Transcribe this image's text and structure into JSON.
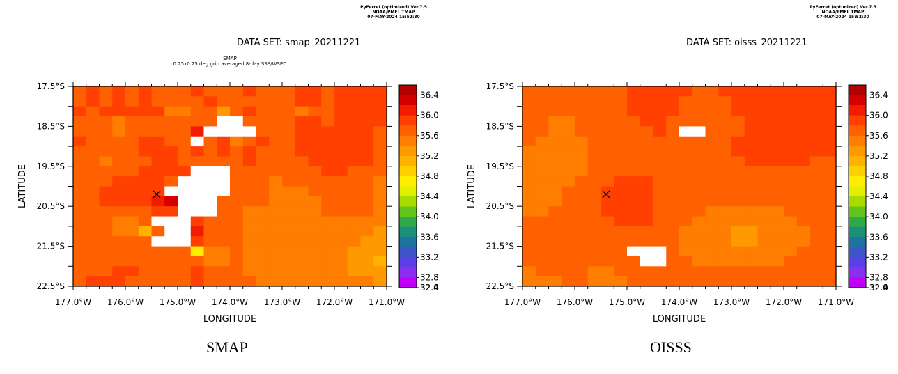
{
  "colors": {
    "palette": [
      "#b20000",
      "#d40000",
      "#f21d00",
      "#ff4000",
      "#ff6100",
      "#ff7d00",
      "#ff9900",
      "#ffb300",
      "#ffd000",
      "#ffee00",
      "#e1f000",
      "#a8dc00",
      "#63c31c",
      "#2fa84a",
      "#1a8f79",
      "#1e73a0",
      "#3c55c8",
      "#5a3fe6",
      "#8a2ff0",
      "#c000f5"
    ],
    "axis": "#000000",
    "missing": "#ffffff"
  },
  "panels": [
    {
      "credit_lines": [
        "PyFerret (optimized) Ver.7.5",
        "NOAA/PMEL TMAP",
        "07-MAY-2024 15:52:30"
      ],
      "dataset_title": "DATA SET: smap_20211221",
      "subtitle_lines": [
        "SMAP",
        "0.25x0.25 deg grid averaged 8-day SSS/WSPD"
      ],
      "caption": "SMAP"
    },
    {
      "credit_lines": [
        "PyFerret (optimized) Ver.7.5",
        "NOAA/PMEL TMAP",
        "07-MAY-2024 15:52:30"
      ],
      "dataset_title": "DATA SET: oisss_20211221",
      "subtitle_lines": [],
      "caption": "OISSS"
    }
  ],
  "chart_data": [
    {
      "type": "heatmap",
      "title": "DATA SET: smap_20211221",
      "xlabel": "LONGITUDE",
      "ylabel": "LATITUDE",
      "x_range": [
        -177.0,
        -171.0
      ],
      "y_range": [
        -22.5,
        -17.5
      ],
      "cell_size_deg": 0.25,
      "x_ticks": [
        "177.0°W",
        "176.0°W",
        "175.0°W",
        "174.0°W",
        "173.0°W",
        "172.0°W",
        "171.0°W"
      ],
      "y_ticks": [
        "17.5°S",
        "18.5°S",
        "19.5°S",
        "20.5°S",
        "21.5°S",
        "22.5°S"
      ],
      "colorbar_ticks": [
        "36.4",
        "36.0",
        "35.6",
        "35.2",
        "34.8",
        "34.4",
        "34.0",
        "33.6",
        "33.2",
        "32.8",
        "32.4",
        "32.0"
      ],
      "colorbar_range": [
        32.0,
        36.6
      ],
      "marker": {
        "symbol": "×",
        "lon": -175.4,
        "lat": -20.2
      },
      "grid_north_to_south": [
        [
          35.6,
          35.7,
          35.6,
          35.7,
          35.6,
          35.7,
          35.6,
          35.5,
          35.6,
          35.7,
          35.6,
          35.5,
          35.6,
          35.7,
          35.6,
          35.5,
          35.6,
          35.7,
          35.7,
          35.6,
          35.7,
          35.8,
          35.8,
          35.7
        ],
        [
          35.6,
          35.7,
          35.6,
          35.7,
          35.6,
          35.7,
          35.5,
          35.5,
          35.6,
          35.5,
          35.9,
          35.5,
          35.6,
          35.6,
          35.6,
          35.5,
          35.6,
          35.7,
          35.7,
          35.6,
          35.7,
          35.8,
          35.9,
          35.9
        ],
        [
          35.7,
          35.6,
          35.7,
          35.7,
          35.8,
          35.7,
          35.7,
          35.4,
          35.4,
          35.6,
          35.5,
          35.2,
          35.6,
          35.7,
          35.6,
          35.5,
          35.5,
          35.4,
          35.6,
          35.6,
          35.7,
          35.7,
          35.7,
          35.8
        ],
        [
          35.6,
          35.5,
          35.5,
          35.4,
          35.5,
          35.5,
          35.5,
          35.5,
          35.6,
          35.5,
          35.6,
          null,
          null,
          35.6,
          35.6,
          35.5,
          35.6,
          35.7,
          35.7,
          35.6,
          35.8,
          35.8,
          35.8,
          35.7
        ],
        [
          35.6,
          35.5,
          35.5,
          35.4,
          35.5,
          35.6,
          35.6,
          35.6,
          35.6,
          36.1,
          null,
          null,
          null,
          null,
          35.6,
          35.6,
          35.6,
          35.7,
          35.7,
          35.8,
          35.8,
          35.8,
          35.7,
          35.6
        ],
        [
          35.7,
          35.6,
          35.6,
          35.5,
          35.6,
          35.7,
          35.7,
          35.6,
          35.6,
          null,
          35.6,
          35.8,
          35.3,
          35.6,
          35.7,
          35.6,
          35.6,
          35.7,
          35.8,
          35.8,
          35.9,
          35.8,
          35.7,
          35.6
        ],
        [
          35.6,
          35.6,
          35.5,
          35.6,
          35.6,
          35.7,
          35.8,
          35.8,
          35.6,
          35.7,
          35.6,
          35.7,
          35.6,
          35.7,
          35.6,
          35.5,
          35.6,
          35.7,
          35.8,
          35.8,
          35.9,
          35.8,
          35.7,
          35.6
        ],
        [
          35.5,
          35.5,
          35.4,
          35.6,
          35.5,
          35.6,
          35.7,
          35.7,
          35.6,
          35.5,
          35.6,
          35.5,
          35.6,
          35.7,
          35.6,
          35.5,
          35.5,
          35.6,
          35.7,
          35.7,
          35.7,
          35.7,
          35.7,
          35.6
        ],
        [
          35.6,
          35.6,
          35.5,
          35.6,
          35.6,
          35.7,
          35.7,
          35.7,
          35.7,
          null,
          null,
          null,
          35.6,
          35.6,
          35.6,
          35.5,
          35.6,
          35.6,
          35.6,
          35.7,
          35.7,
          35.6,
          35.6,
          35.5
        ],
        [
          35.5,
          35.6,
          35.6,
          35.7,
          35.8,
          35.8,
          35.7,
          35.6,
          null,
          null,
          null,
          null,
          35.5,
          35.5,
          35.5,
          35.4,
          35.5,
          35.5,
          35.5,
          35.5,
          35.5,
          35.5,
          35.5,
          35.4
        ],
        [
          35.6,
          35.6,
          35.7,
          35.8,
          35.9,
          35.9,
          35.8,
          null,
          null,
          null,
          null,
          null,
          35.5,
          35.5,
          35.5,
          35.4,
          35.4,
          35.4,
          35.5,
          35.5,
          35.5,
          35.5,
          35.5,
          35.4
        ],
        [
          35.6,
          35.6,
          35.7,
          35.8,
          35.8,
          35.9,
          36.0,
          36.2,
          null,
          null,
          null,
          35.6,
          35.6,
          35.5,
          35.5,
          35.4,
          35.4,
          35.4,
          35.4,
          35.5,
          35.6,
          35.6,
          35.5,
          35.4
        ],
        [
          35.6,
          35.5,
          35.6,
          35.6,
          35.5,
          35.6,
          35.7,
          35.7,
          null,
          null,
          null,
          35.6,
          35.6,
          35.4,
          35.4,
          35.4,
          35.4,
          35.4,
          35.4,
          35.5,
          35.6,
          35.6,
          35.5,
          35.4
        ],
        [
          35.6,
          35.5,
          35.5,
          35.4,
          35.4,
          35.5,
          null,
          null,
          null,
          35.7,
          35.5,
          35.6,
          35.6,
          35.4,
          35.4,
          35.3,
          35.3,
          35.3,
          35.3,
          35.3,
          35.3,
          35.4,
          35.3,
          35.3
        ],
        [
          35.6,
          35.5,
          35.5,
          35.3,
          35.3,
          34.9,
          35.5,
          null,
          null,
          36.0,
          35.6,
          35.6,
          35.6,
          35.4,
          35.4,
          35.3,
          35.3,
          35.3,
          35.4,
          35.4,
          35.4,
          35.3,
          35.3,
          35.2
        ],
        [
          35.6,
          35.6,
          35.6,
          35.6,
          35.5,
          35.5,
          null,
          null,
          null,
          35.7,
          35.6,
          35.6,
          35.5,
          35.4,
          35.4,
          35.3,
          35.3,
          35.3,
          35.4,
          35.4,
          35.3,
          35.3,
          35.2,
          35.1
        ],
        [
          35.6,
          35.6,
          35.6,
          35.6,
          35.6,
          35.6,
          35.6,
          35.6,
          35.5,
          34.5,
          35.4,
          35.4,
          35.5,
          35.4,
          35.4,
          35.3,
          35.3,
          35.3,
          35.4,
          35.4,
          35.3,
          35.2,
          35.0,
          35.0
        ],
        [
          35.6,
          35.5,
          35.6,
          35.6,
          35.6,
          35.6,
          35.6,
          35.6,
          35.6,
          35.6,
          35.4,
          35.4,
          35.5,
          35.4,
          35.3,
          35.3,
          35.3,
          35.3,
          35.4,
          35.4,
          35.3,
          35.2,
          35.0,
          34.9
        ],
        [
          35.6,
          35.6,
          35.6,
          35.7,
          35.7,
          35.6,
          35.6,
          35.6,
          35.5,
          35.7,
          35.6,
          35.6,
          35.5,
          35.4,
          35.4,
          35.3,
          35.3,
          35.3,
          35.4,
          35.3,
          35.3,
          35.2,
          35.1,
          35.0
        ],
        [
          35.6,
          35.7,
          35.7,
          35.7,
          35.6,
          35.6,
          35.6,
          35.6,
          35.6,
          35.7,
          35.6,
          35.6,
          35.6,
          35.5,
          35.4,
          35.3,
          35.3,
          35.3,
          35.3,
          35.3,
          35.3,
          35.3,
          35.3,
          35.2
        ]
      ]
    },
    {
      "type": "heatmap",
      "title": "DATA SET: oisss_20211221",
      "xlabel": "LONGITUDE",
      "ylabel": "LATITUDE",
      "x_range": [
        -177.0,
        -171.0
      ],
      "y_range": [
        -22.5,
        -17.5
      ],
      "cell_size_deg": 0.25,
      "x_ticks": [
        "177.0°W",
        "176.0°W",
        "175.0°W",
        "174.0°W",
        "173.0°W",
        "172.0°W",
        "171.0°W"
      ],
      "y_ticks": [
        "17.5°S",
        "18.5°S",
        "19.5°S",
        "20.5°S",
        "21.5°S",
        "22.5°S"
      ],
      "colorbar_ticks": [
        "36.4",
        "36.0",
        "35.6",
        "35.2",
        "34.8",
        "34.4",
        "34.0",
        "33.6",
        "33.2",
        "32.8",
        "32.4",
        "32.0"
      ],
      "colorbar_range": [
        32.0,
        36.6
      ],
      "marker": {
        "symbol": "×",
        "lon": -175.4,
        "lat": -20.2
      },
      "grid_north_to_south": [
        [
          35.6,
          35.6,
          35.6,
          35.6,
          35.6,
          35.6,
          35.6,
          35.6,
          35.7,
          35.7,
          35.7,
          35.7,
          35.7,
          35.6,
          35.6,
          35.7,
          35.7,
          35.7,
          35.7,
          35.8,
          35.8,
          35.9,
          35.9,
          35.9
        ],
        [
          35.5,
          35.5,
          35.5,
          35.5,
          35.5,
          35.5,
          35.6,
          35.6,
          35.7,
          35.7,
          35.7,
          35.7,
          35.6,
          35.6,
          35.6,
          35.6,
          35.7,
          35.7,
          35.8,
          35.8,
          35.9,
          35.9,
          35.9,
          35.9
        ],
        [
          35.5,
          35.5,
          35.5,
          35.5,
          35.5,
          35.6,
          35.6,
          35.6,
          35.7,
          35.7,
          35.7,
          35.7,
          35.6,
          35.5,
          35.6,
          35.6,
          35.7,
          35.7,
          35.8,
          35.8,
          35.8,
          35.9,
          35.9,
          35.9
        ],
        [
          35.5,
          35.5,
          35.4,
          35.4,
          35.5,
          35.5,
          35.6,
          35.6,
          35.6,
          35.7,
          35.7,
          35.6,
          35.6,
          35.6,
          35.6,
          35.6,
          35.6,
          35.7,
          35.7,
          35.8,
          35.8,
          35.8,
          35.8,
          35.8
        ],
        [
          35.5,
          35.5,
          35.4,
          35.4,
          35.5,
          35.5,
          35.5,
          35.6,
          35.6,
          35.6,
          35.7,
          35.6,
          null,
          null,
          35.6,
          35.6,
          35.6,
          35.7,
          35.7,
          35.7,
          35.7,
          35.8,
          35.8,
          35.8
        ],
        [
          35.5,
          35.4,
          35.4,
          35.4,
          35.4,
          35.5,
          35.5,
          35.5,
          35.6,
          35.6,
          35.6,
          35.6,
          35.6,
          35.6,
          35.6,
          35.6,
          35.7,
          35.7,
          35.7,
          35.7,
          35.7,
          35.7,
          35.7,
          35.7
        ],
        [
          35.4,
          35.4,
          35.3,
          35.3,
          35.4,
          35.5,
          35.5,
          35.5,
          35.6,
          35.6,
          35.6,
          35.6,
          35.6,
          35.6,
          35.6,
          35.6,
          35.7,
          35.7,
          35.7,
          35.7,
          35.7,
          35.7,
          35.7,
          35.7
        ],
        [
          35.4,
          35.4,
          35.3,
          35.3,
          35.4,
          35.5,
          35.5,
          35.6,
          35.6,
          35.6,
          35.6,
          35.6,
          35.6,
          35.6,
          35.6,
          35.6,
          35.6,
          35.7,
          35.7,
          35.7,
          35.7,
          35.7,
          35.6,
          35.6
        ],
        [
          35.4,
          35.4,
          35.4,
          35.4,
          35.4,
          35.5,
          35.6,
          35.6,
          35.6,
          35.6,
          35.6,
          35.5,
          35.5,
          35.5,
          35.6,
          35.6,
          35.6,
          35.6,
          35.6,
          35.6,
          35.6,
          35.6,
          35.6,
          35.6
        ],
        [
          35.4,
          35.4,
          35.4,
          35.4,
          35.5,
          35.5,
          35.6,
          35.7,
          35.7,
          35.7,
          35.6,
          35.5,
          35.5,
          35.5,
          35.5,
          35.6,
          35.6,
          35.6,
          35.6,
          35.6,
          35.6,
          35.5,
          35.5,
          35.5
        ],
        [
          35.4,
          35.4,
          35.4,
          35.5,
          35.5,
          35.6,
          35.7,
          35.7,
          35.7,
          35.7,
          35.6,
          35.5,
          35.5,
          35.5,
          35.5,
          35.5,
          35.5,
          35.6,
          35.6,
          35.6,
          35.5,
          35.5,
          35.5,
          35.5
        ],
        [
          35.4,
          35.4,
          35.4,
          35.5,
          35.5,
          35.6,
          35.7,
          35.8,
          35.7,
          35.7,
          35.6,
          35.5,
          35.5,
          35.5,
          35.5,
          35.5,
          35.5,
          35.5,
          35.5,
          35.5,
          35.5,
          35.5,
          35.5,
          35.5
        ],
        [
          35.4,
          35.4,
          35.5,
          35.5,
          35.6,
          35.6,
          35.7,
          35.7,
          35.7,
          35.7,
          35.6,
          35.5,
          35.5,
          35.5,
          35.4,
          35.4,
          35.4,
          35.4,
          35.4,
          35.4,
          35.5,
          35.5,
          35.5,
          35.5
        ],
        [
          35.5,
          35.5,
          35.5,
          35.5,
          35.5,
          35.6,
          35.6,
          35.7,
          35.7,
          35.7,
          35.6,
          35.5,
          35.5,
          35.4,
          35.4,
          35.4,
          35.3,
          35.3,
          35.3,
          35.4,
          35.4,
          35.5,
          35.5,
          35.5
        ],
        [
          35.5,
          35.5,
          35.5,
          35.5,
          35.5,
          35.5,
          35.6,
          35.6,
          35.6,
          35.6,
          35.5,
          35.5,
          35.4,
          35.4,
          35.4,
          35.3,
          35.2,
          35.2,
          35.3,
          35.3,
          35.4,
          35.4,
          35.5,
          35.5
        ],
        [
          35.5,
          35.5,
          35.5,
          35.5,
          35.5,
          35.5,
          35.5,
          35.6,
          35.6,
          35.6,
          35.5,
          35.5,
          35.4,
          35.4,
          35.4,
          35.3,
          35.2,
          35.2,
          35.3,
          35.3,
          35.4,
          35.4,
          35.5,
          35.5
        ],
        [
          35.5,
          35.5,
          35.5,
          35.5,
          35.5,
          35.5,
          35.5,
          35.5,
          null,
          null,
          null,
          35.5,
          35.4,
          35.4,
          35.4,
          35.4,
          35.3,
          35.3,
          35.3,
          35.4,
          35.4,
          35.5,
          35.5,
          35.5
        ],
        [
          35.5,
          35.5,
          35.5,
          35.5,
          35.5,
          35.5,
          35.5,
          35.5,
          35.5,
          null,
          null,
          35.5,
          35.5,
          35.4,
          35.4,
          35.4,
          35.4,
          35.4,
          35.4,
          35.4,
          35.5,
          35.5,
          35.5,
          35.5
        ],
        [
          35.4,
          35.5,
          35.5,
          35.5,
          35.5,
          35.4,
          35.4,
          35.5,
          35.5,
          35.5,
          35.5,
          35.5,
          35.5,
          35.5,
          35.6,
          35.6,
          35.5,
          35.5,
          35.5,
          35.5,
          35.5,
          35.5,
          35.5,
          35.5
        ],
        [
          35.3,
          35.4,
          35.4,
          35.5,
          35.5,
          35.4,
          35.4,
          35.4,
          35.5,
          35.5,
          35.5,
          35.5,
          35.5,
          35.6,
          35.6,
          35.6,
          35.5,
          35.5,
          35.5,
          35.5,
          35.5,
          35.5,
          35.5,
          35.5
        ]
      ]
    }
  ]
}
